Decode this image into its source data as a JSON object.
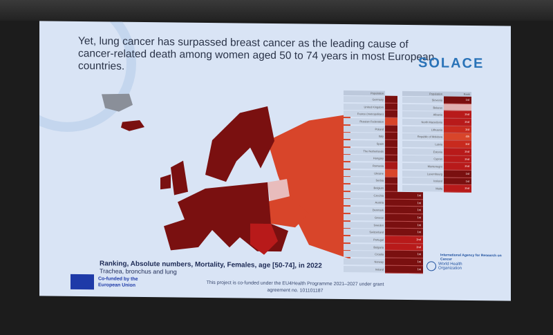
{
  "slide": {
    "title": "Yet, lung cancer has surpassed breast cancer as the leading cause of cancer-related death among women aged 50 to 74 years in most European countries.",
    "logo": "SOLACE",
    "caption": "Ranking, Absolute numbers, Mortality, Females, age [50-74], in 2022",
    "subcaption": "Trachea, bronchus and lung",
    "eu_label": "Co-funded by the European Union",
    "grant": "This project is co-funded under the EU4Health Programme 2021–2027 under grant agreement no. 101101187",
    "iarc": "International Agency for Research on Cancer",
    "who": "World Health Organization"
  },
  "table": {
    "header_population": "Population",
    "header_rank": "Rank",
    "left": [
      {
        "c": "Germany",
        "r": "",
        "col": "#7a1010"
      },
      {
        "c": "United Kingdom",
        "r": "",
        "col": "#7a1010"
      },
      {
        "c": "France (metropolitan)",
        "r": "",
        "col": "#7a1010"
      },
      {
        "c": "Russian Federation",
        "r": "",
        "col": "#d8452a"
      },
      {
        "c": "Poland",
        "r": "",
        "col": "#7a1010"
      },
      {
        "c": "Italy",
        "r": "",
        "col": "#7a1010"
      },
      {
        "c": "Spain",
        "r": "",
        "col": "#7a1010"
      },
      {
        "c": "The Netherlands",
        "r": "",
        "col": "#7a1010"
      },
      {
        "c": "Hungary",
        "r": "",
        "col": "#7a1010"
      },
      {
        "c": "Romania",
        "r": "",
        "col": "#a81818"
      },
      {
        "c": "Ukraine",
        "r": "",
        "col": "#d8452a"
      },
      {
        "c": "Serbia",
        "r": "",
        "col": "#7a1010"
      },
      {
        "c": "Belgium",
        "r": "",
        "col": "#7a1010"
      },
      {
        "c": "Czechia",
        "r": "1st",
        "col": "#7a1010"
      },
      {
        "c": "Austria",
        "r": "1st",
        "col": "#7a1010"
      },
      {
        "c": "Denmark",
        "r": "1st",
        "col": "#7a1010"
      },
      {
        "c": "Greece",
        "r": "1st",
        "col": "#7a1010"
      },
      {
        "c": "Sweden",
        "r": "1st",
        "col": "#7a1010"
      },
      {
        "c": "Switzerland",
        "r": "1st",
        "col": "#7a1010"
      },
      {
        "c": "Portugal",
        "r": "2nd",
        "col": "#b81a1a"
      },
      {
        "c": "Bulgaria",
        "r": "2nd",
        "col": "#b81a1a"
      },
      {
        "c": "Croatia",
        "r": "1st",
        "col": "#7a1010"
      },
      {
        "c": "Norway",
        "r": "1st",
        "col": "#7a1010"
      },
      {
        "c": "Ireland",
        "r": "1st",
        "col": "#7a1010"
      }
    ],
    "right": [
      {
        "c": "Slovenia",
        "r": "1st",
        "col": "#7a1010"
      },
      {
        "c": "Belarus",
        "r": "",
        "col": "#e0b0b0"
      },
      {
        "c": "Albania",
        "r": "2nd",
        "col": "#b81a1a"
      },
      {
        "c": "North Macedonia",
        "r": "2nd",
        "col": "#b81a1a"
      },
      {
        "c": "Lithuania",
        "r": "3rd",
        "col": "#c82a1e"
      },
      {
        "c": "Republic of Moldova",
        "r": "4th",
        "col": "#d8452a"
      },
      {
        "c": "Latvia",
        "r": "3rd",
        "col": "#c82a1e"
      },
      {
        "c": "Estonia",
        "r": "2nd",
        "col": "#b81a1a"
      },
      {
        "c": "Cyprus",
        "r": "2nd",
        "col": "#b81a1a"
      },
      {
        "c": "Montenegro",
        "r": "2nd",
        "col": "#b81a1a"
      },
      {
        "c": "Luxembourg",
        "r": "1st",
        "col": "#7a1010"
      },
      {
        "c": "Iceland",
        "r": "1st",
        "col": "#7a1010"
      },
      {
        "c": "Malta",
        "r": "2nd",
        "col": "#b81a1a"
      }
    ]
  }
}
